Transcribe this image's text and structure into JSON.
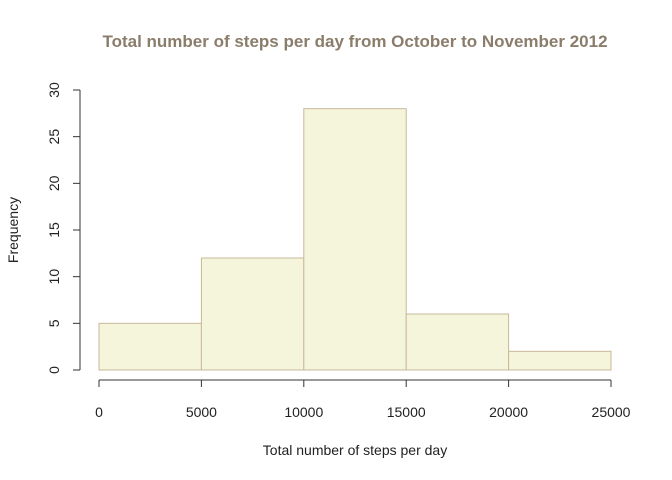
{
  "chart_data": {
    "type": "bar",
    "title": "Total number of steps per day from October to November 2012",
    "xlabel": "Total number of steps per day",
    "ylabel": "Frequency",
    "bins": [
      {
        "from": 0,
        "to": 5000,
        "count": 5
      },
      {
        "from": 5000,
        "to": 10000,
        "count": 12
      },
      {
        "from": 10000,
        "to": 15000,
        "count": 28
      },
      {
        "from": 15000,
        "to": 20000,
        "count": 6
      },
      {
        "from": 20000,
        "to": 25000,
        "count": 2
      }
    ],
    "xlim": [
      0,
      25000
    ],
    "ylim": [
      0,
      30
    ],
    "x_ticks": [
      "0",
      "5000",
      "10000",
      "15000",
      "20000",
      "25000"
    ],
    "y_ticks": [
      "0",
      "5",
      "10",
      "15",
      "20",
      "25",
      "30"
    ],
    "grid": false,
    "colors": {
      "bar_fill": "#f5f5dc",
      "bar_stroke": "#c8b89a",
      "title": "#8b7d6b",
      "axis": "#333333"
    }
  }
}
